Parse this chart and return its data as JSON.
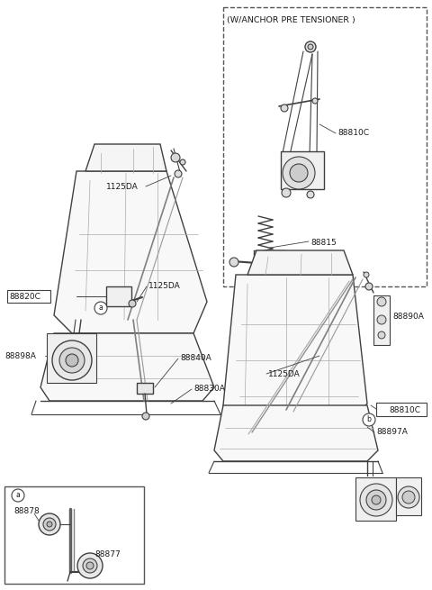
{
  "bg_color": "#ffffff",
  "line_color": "#404040",
  "text_color": "#1a1a1a",
  "fig_width": 4.8,
  "fig_height": 6.55,
  "dpi": 100,
  "anchor_box_title": "(W/ANCHOR PRE TENSIONER )",
  "labels": {
    "1125DA_upper": "1125DA",
    "1125DA_mid": "1125DA",
    "1125DA_right": "1125DA",
    "88820C": "88820C",
    "88898A": "88898A",
    "88840A": "88840A",
    "88830A": "88830A",
    "88810C_inner": "88810C",
    "88815": "88815",
    "88890A": "88890A",
    "88810C_outer": "88810C",
    "88897A": "88897A",
    "88878": "88878",
    "88877": "88877"
  }
}
